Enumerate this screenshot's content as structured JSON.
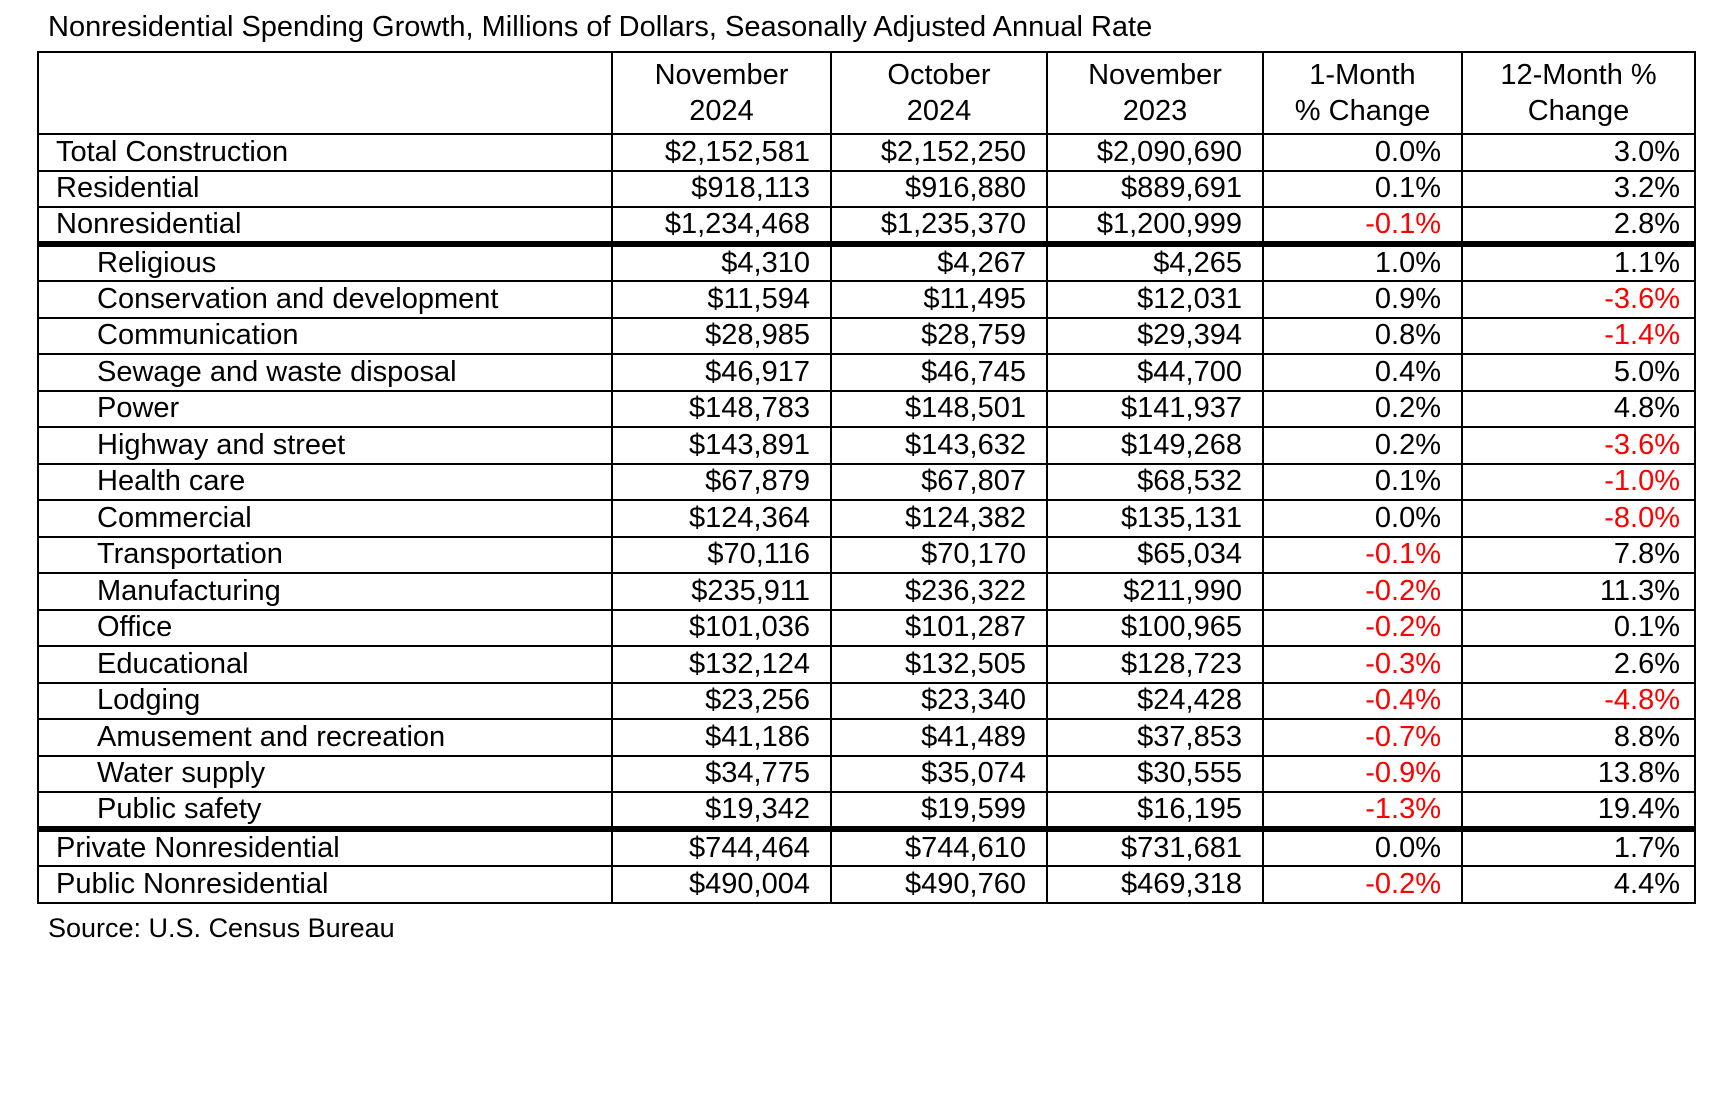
{
  "chart_data": {
    "type": "table",
    "title": "Nonresidential Spending Growth, Millions of Dollars, Seasonally Adjusted Annual Rate",
    "source": "Source: U.S. Census Bureau",
    "units": "Millions of Dollars, Seasonally Adjusted Annual Rate",
    "negative_value_color": "#FF0000",
    "text_color": "#000000",
    "border_color": "#000000",
    "background_color": "#FFFFFF",
    "columns": [
      "",
      "November\n2024",
      "October\n2024",
      "November\n2023",
      "1-Month\n% Change",
      "12-Month %\nChange"
    ],
    "rows": [
      {
        "label": "Total Construction",
        "indent": false,
        "thick_below": false,
        "values": [
          "$2,152,581",
          "$2,152,250",
          "$2,090,690",
          "0.0%",
          "3.0%"
        ]
      },
      {
        "label": "Residential",
        "indent": false,
        "thick_below": false,
        "values": [
          "$918,113",
          "$916,880",
          "$889,691",
          "0.1%",
          "3.2%"
        ]
      },
      {
        "label": "Nonresidential",
        "indent": false,
        "thick_below": true,
        "values": [
          "$1,234,468",
          "$1,235,370",
          "$1,200,999",
          "-0.1%",
          "2.8%"
        ]
      },
      {
        "label": "Religious",
        "indent": true,
        "thick_below": false,
        "values": [
          "$4,310",
          "$4,267",
          "$4,265",
          "1.0%",
          "1.1%"
        ]
      },
      {
        "label": "Conservation and development",
        "indent": true,
        "thick_below": false,
        "values": [
          "$11,594",
          "$11,495",
          "$12,031",
          "0.9%",
          "-3.6%"
        ]
      },
      {
        "label": "Communication",
        "indent": true,
        "thick_below": false,
        "values": [
          "$28,985",
          "$28,759",
          "$29,394",
          "0.8%",
          "-1.4%"
        ]
      },
      {
        "label": "Sewage and waste disposal",
        "indent": true,
        "thick_below": false,
        "values": [
          "$46,917",
          "$46,745",
          "$44,700",
          "0.4%",
          "5.0%"
        ]
      },
      {
        "label": "Power",
        "indent": true,
        "thick_below": false,
        "values": [
          "$148,783",
          "$148,501",
          "$141,937",
          "0.2%",
          "4.8%"
        ]
      },
      {
        "label": "Highway and street",
        "indent": true,
        "thick_below": false,
        "values": [
          "$143,891",
          "$143,632",
          "$149,268",
          "0.2%",
          "-3.6%"
        ]
      },
      {
        "label": "Health care",
        "indent": true,
        "thick_below": false,
        "values": [
          "$67,879",
          "$67,807",
          "$68,532",
          "0.1%",
          "-1.0%"
        ]
      },
      {
        "label": "Commercial",
        "indent": true,
        "thick_below": false,
        "values": [
          "$124,364",
          "$124,382",
          "$135,131",
          "0.0%",
          "-8.0%"
        ]
      },
      {
        "label": "Transportation",
        "indent": true,
        "thick_below": false,
        "values": [
          "$70,116",
          "$70,170",
          "$65,034",
          "-0.1%",
          "7.8%"
        ]
      },
      {
        "label": "Manufacturing",
        "indent": true,
        "thick_below": false,
        "values": [
          "$235,911",
          "$236,322",
          "$211,990",
          "-0.2%",
          "11.3%"
        ]
      },
      {
        "label": "Office",
        "indent": true,
        "thick_below": false,
        "values": [
          "$101,036",
          "$101,287",
          "$100,965",
          "-0.2%",
          "0.1%"
        ]
      },
      {
        "label": "Educational",
        "indent": true,
        "thick_below": false,
        "values": [
          "$132,124",
          "$132,505",
          "$128,723",
          "-0.3%",
          "2.6%"
        ]
      },
      {
        "label": "Lodging",
        "indent": true,
        "thick_below": false,
        "values": [
          "$23,256",
          "$23,340",
          "$24,428",
          "-0.4%",
          "-4.8%"
        ]
      },
      {
        "label": "Amusement and recreation",
        "indent": true,
        "thick_below": false,
        "values": [
          "$41,186",
          "$41,489",
          "$37,853",
          "-0.7%",
          "8.8%"
        ]
      },
      {
        "label": "Water supply",
        "indent": true,
        "thick_below": false,
        "values": [
          "$34,775",
          "$35,074",
          "$30,555",
          "-0.9%",
          "13.8%"
        ]
      },
      {
        "label": "Public safety",
        "indent": true,
        "thick_below": true,
        "values": [
          "$19,342",
          "$19,599",
          "$16,195",
          "-1.3%",
          "19.4%"
        ]
      },
      {
        "label": "Private Nonresidential",
        "indent": false,
        "thick_below": false,
        "values": [
          "$744,464",
          "$744,610",
          "$731,681",
          "0.0%",
          "1.7%"
        ]
      },
      {
        "label": "Public Nonresidential",
        "indent": false,
        "thick_below": false,
        "values": [
          "$490,004",
          "$490,760",
          "$469,318",
          "-0.2%",
          "4.4%"
        ]
      }
    ]
  }
}
